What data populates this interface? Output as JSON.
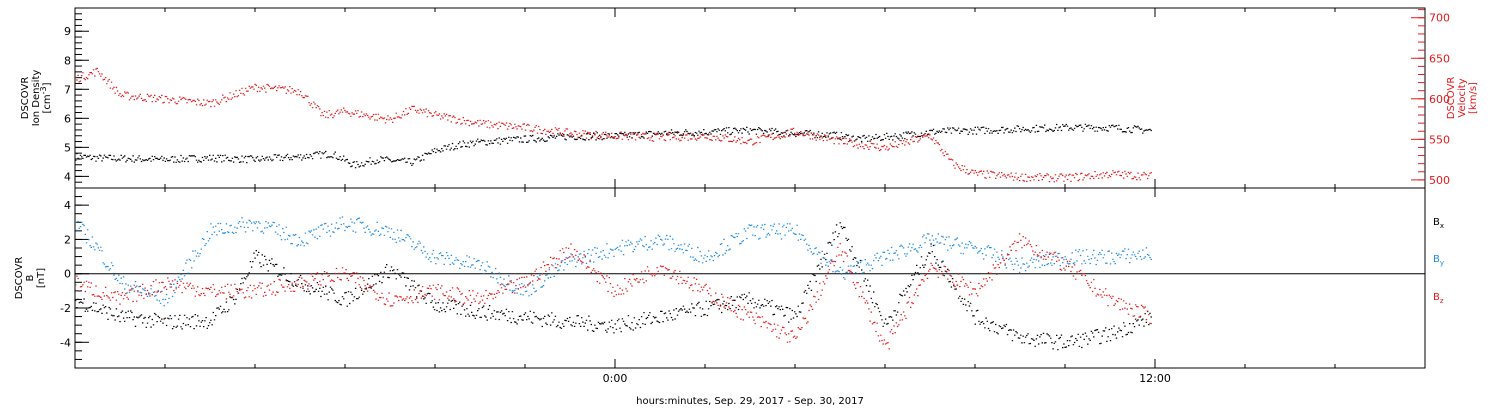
{
  "xlabel": "hours:minutes, Sep. 29, 2017 - Sep. 30, 2017",
  "xtick_labels": [
    "0:00",
    "12:00"
  ],
  "colors": {
    "black": "#000000",
    "red": "#e31a1c",
    "blue": "#1f8be0"
  },
  "chart_data": [
    {
      "type": "scatter",
      "panel": "plasma",
      "x_unit": "hours relative to Sep. 30, 2017 00:00",
      "xlim": [
        -12,
        18
      ],
      "data_end": 12,
      "left_axis": {
        "title_lines": [
          "DSCOVR",
          "Ion Density",
          "[cm^-3]"
        ],
        "ylim": [
          3.6,
          9.8
        ],
        "tick_labels": [
          "4",
          "5",
          "6",
          "7",
          "8",
          "9"
        ],
        "color": "#000000"
      },
      "right_axis": {
        "title_lines": [
          "DSCOVR",
          "Velocity",
          "[km/s]"
        ],
        "ylim": [
          490,
          712
        ],
        "tick_labels": [
          "500",
          "550",
          "600",
          "650",
          "700"
        ],
        "color": "#e31a1c"
      },
      "series": [
        {
          "axis": "left",
          "color": "#000000",
          "x": [
            -12,
            -11.5,
            -10,
            -9,
            -8,
            -7,
            -6.3,
            -5.8,
            -5.3,
            -4.5,
            -4,
            -3.5,
            -3,
            -2,
            -1,
            0,
            1,
            2,
            3,
            4,
            4.8,
            5.5,
            6.5,
            7,
            8,
            9,
            10,
            11,
            11.9
          ],
          "y": [
            4.7,
            4.65,
            4.6,
            4.65,
            4.6,
            4.7,
            4.8,
            4.4,
            4.6,
            4.5,
            4.9,
            5.1,
            5.2,
            5.3,
            5.4,
            5.4,
            5.5,
            5.55,
            5.6,
            5.5,
            5.45,
            5.3,
            5.45,
            5.55,
            5.6,
            5.65,
            5.7,
            5.7,
            5.6
          ]
        },
        {
          "axis": "right",
          "color": "#e31a1c",
          "x": [
            -12,
            -11.5,
            -11,
            -10,
            -9,
            -8.5,
            -8,
            -7,
            -6.5,
            -6,
            -5,
            -4.5,
            -4,
            -3,
            -2,
            -1,
            0,
            1,
            2,
            3,
            4,
            5,
            6,
            7,
            7.5,
            8,
            9,
            10,
            11,
            11.9
          ],
          "y": [
            625,
            635,
            605,
            600,
            595,
            605,
            615,
            610,
            580,
            585,
            575,
            588,
            580,
            570,
            565,
            558,
            555,
            553,
            555,
            548,
            560,
            548,
            540,
            555,
            520,
            508,
            504,
            503,
            508,
            505
          ]
        }
      ]
    },
    {
      "type": "scatter",
      "panel": "magnetic_field",
      "x_unit": "hours relative to Sep. 30, 2017 00:00",
      "xlim": [
        -12,
        18
      ],
      "data_end": 12,
      "left_axis": {
        "title_lines": [
          "DSCOVR",
          "B",
          "[nT]"
        ],
        "ylim": [
          -5.5,
          5.0
        ],
        "tick_labels": [
          "-4",
          "-2",
          "0",
          "2",
          "4"
        ],
        "color": "#000000"
      },
      "zero_line": 0,
      "series": [
        {
          "name": "Bx",
          "label_main": "B",
          "label_sub": "x",
          "color": "#000000",
          "x": [
            -12,
            -11,
            -10,
            -9,
            -8.5,
            -8,
            -7,
            -6,
            -5,
            -4,
            -3,
            -2,
            -1,
            0,
            1,
            2,
            3,
            4,
            5,
            6,
            7,
            8,
            9,
            10,
            11,
            11.9
          ],
          "y": [
            -1.5,
            -2.5,
            -2.8,
            -2.7,
            -1.5,
            1.0,
            -0.5,
            -1.5,
            0.3,
            -1.8,
            -2.2,
            -2.5,
            -2.8,
            -3.0,
            -2.5,
            -2.0,
            -1.5,
            -2.5,
            3.0,
            -3.0,
            1.5,
            -2.5,
            -3.7,
            -4.0,
            -3.5,
            -2.5
          ]
        },
        {
          "name": "By",
          "label_main": "B",
          "label_sub": "y",
          "color": "#1f8be0",
          "x": [
            -12,
            -11.5,
            -11,
            -10,
            -9,
            -8,
            -7,
            -6,
            -5,
            -4,
            -3,
            -2,
            -1,
            0,
            1,
            2,
            3,
            4,
            5,
            6,
            7,
            8,
            9,
            10,
            11,
            11.9
          ],
          "y": [
            3.0,
            1.5,
            -0.5,
            -1.5,
            2.5,
            3.0,
            2.0,
            3.0,
            2.5,
            1.0,
            0.5,
            -1.0,
            0.8,
            1.5,
            2.0,
            1.0,
            2.5,
            2.5,
            0.0,
            1.0,
            2.0,
            1.5,
            0.5,
            1.0,
            1.0,
            1.2
          ]
        },
        {
          "name": "Bz",
          "label_main": "B",
          "label_sub": "z",
          "color": "#e31a1c",
          "x": [
            -12,
            -11.5,
            -11,
            -10,
            -9,
            -8,
            -7,
            -6,
            -5,
            -4,
            -3,
            -2,
            -1,
            0,
            1,
            2,
            3,
            4,
            5,
            6,
            7,
            8,
            9,
            10,
            11,
            11.9
          ],
          "y": [
            -0.5,
            -1.0,
            -1.5,
            -0.5,
            -1.0,
            -1.0,
            -0.5,
            0.0,
            -1.5,
            -1.0,
            -1.5,
            -0.5,
            1.5,
            -1.0,
            0.5,
            -1.0,
            -2.5,
            -3.8,
            1.5,
            -4.3,
            0.5,
            -1.0,
            2.0,
            0.5,
            -1.5,
            -2.5
          ]
        }
      ]
    }
  ]
}
